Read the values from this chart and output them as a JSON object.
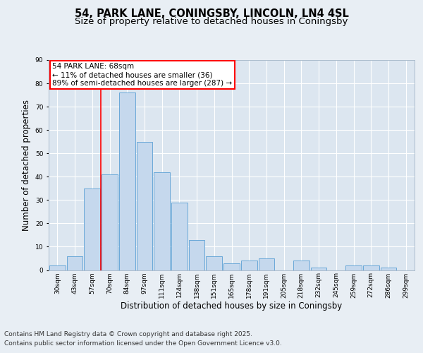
{
  "title_line1": "54, PARK LANE, CONINGSBY, LINCOLN, LN4 4SL",
  "title_line2": "Size of property relative to detached houses in Coningsby",
  "xlabel": "Distribution of detached houses by size in Coningsby",
  "ylabel": "Number of detached properties",
  "categories": [
    "30sqm",
    "43sqm",
    "57sqm",
    "70sqm",
    "84sqm",
    "97sqm",
    "111sqm",
    "124sqm",
    "138sqm",
    "151sqm",
    "165sqm",
    "178sqm",
    "191sqm",
    "205sqm",
    "218sqm",
    "232sqm",
    "245sqm",
    "259sqm",
    "272sqm",
    "286sqm",
    "299sqm"
  ],
  "values": [
    2,
    6,
    35,
    41,
    76,
    55,
    42,
    29,
    13,
    6,
    3,
    4,
    5,
    0,
    4,
    1,
    0,
    2,
    2,
    1,
    0
  ],
  "bar_color": "#c5d8ed",
  "bar_edge_color": "#5a9fd4",
  "annotation_text": "54 PARK LANE: 68sqm\n← 11% of detached houses are smaller (36)\n89% of semi-detached houses are larger (287) →",
  "annotation_box_color": "white",
  "annotation_box_edge_color": "red",
  "vline_x_index": 2.5,
  "vline_color": "red",
  "ylim": [
    0,
    90
  ],
  "yticks": [
    0,
    10,
    20,
    30,
    40,
    50,
    60,
    70,
    80,
    90
  ],
  "bg_color": "#e8eef4",
  "plot_bg_color": "#dce6f0",
  "footer_line1": "Contains HM Land Registry data © Crown copyright and database right 2025.",
  "footer_line2": "Contains public sector information licensed under the Open Government Licence v3.0.",
  "title_fontsize": 10.5,
  "subtitle_fontsize": 9.5,
  "tick_fontsize": 6.5,
  "label_fontsize": 8.5,
  "footer_fontsize": 6.5,
  "annotation_fontsize": 7.5
}
